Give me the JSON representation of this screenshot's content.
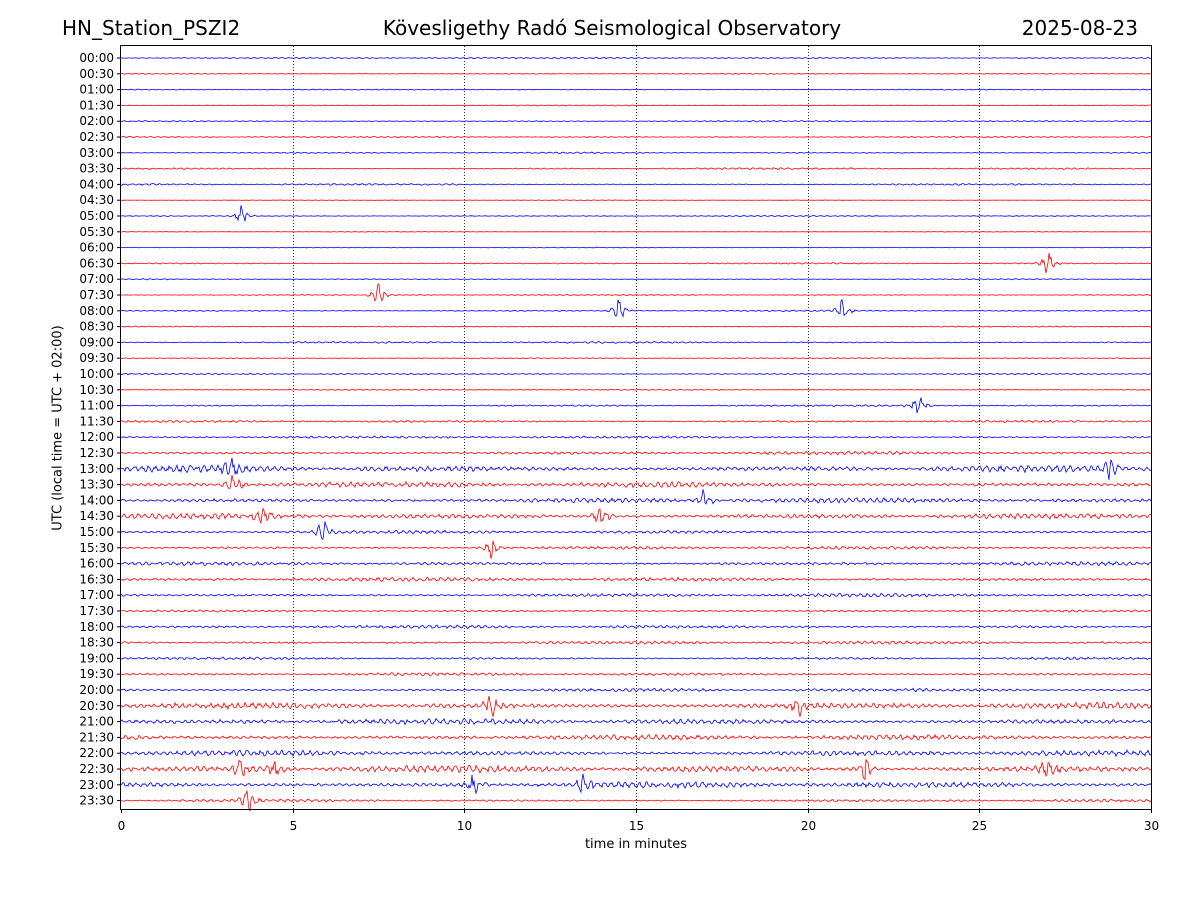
{
  "chart_data": {
    "type": "line",
    "title_left": "HN_Station_PSZI2",
    "title": "Kövesligethy Radó Seismological Observatory",
    "title_right": "2025-08-23",
    "xlabel": "time in minutes",
    "ylabel": "UTC (local time = UTC + 02:00)",
    "xlim": [
      0,
      30
    ],
    "xticks": [
      0,
      5,
      10,
      15,
      20,
      25,
      30
    ],
    "grid": "vertical dotted at x ticks",
    "colors": [
      "#0000ff",
      "#ff0000"
    ],
    "rows": [
      {
        "label": "00:00",
        "amp": 0.2
      },
      {
        "label": "00:30",
        "amp": 0.15
      },
      {
        "label": "01:00",
        "amp": 0.15
      },
      {
        "label": "01:30",
        "amp": 0.15
      },
      {
        "label": "02:00",
        "amp": 0.2
      },
      {
        "label": "02:30",
        "amp": 0.2
      },
      {
        "label": "03:00",
        "amp": 0.2
      },
      {
        "label": "03:30",
        "amp": 0.25
      },
      {
        "label": "04:00",
        "amp": 0.25
      },
      {
        "label": "04:30",
        "amp": 0.1
      },
      {
        "label": "05:00",
        "amp": 0.15
      },
      {
        "label": "05:30",
        "amp": 0.1
      },
      {
        "label": "06:00",
        "amp": 0.1
      },
      {
        "label": "06:30",
        "amp": 0.2
      },
      {
        "label": "07:00",
        "amp": 0.15
      },
      {
        "label": "07:30",
        "amp": 0.15
      },
      {
        "label": "08:00",
        "amp": 0.2
      },
      {
        "label": "08:30",
        "amp": 0.15
      },
      {
        "label": "09:00",
        "amp": 0.25
      },
      {
        "label": "09:30",
        "amp": 0.15
      },
      {
        "label": "10:00",
        "amp": 0.2
      },
      {
        "label": "10:30",
        "amp": 0.15
      },
      {
        "label": "11:00",
        "amp": 0.25
      },
      {
        "label": "11:30",
        "amp": 0.3
      },
      {
        "label": "12:00",
        "amp": 0.35
      },
      {
        "label": "12:30",
        "amp": 0.45
      },
      {
        "label": "13:00",
        "amp": 0.9
      },
      {
        "label": "13:30",
        "amp": 0.8
      },
      {
        "label": "14:00",
        "amp": 0.7
      },
      {
        "label": "14:30",
        "amp": 0.75
      },
      {
        "label": "15:00",
        "amp": 0.45
      },
      {
        "label": "15:30",
        "amp": 0.45
      },
      {
        "label": "16:00",
        "amp": 0.5
      },
      {
        "label": "16:30",
        "amp": 0.55
      },
      {
        "label": "17:00",
        "amp": 0.5
      },
      {
        "label": "17:30",
        "amp": 0.3
      },
      {
        "label": "18:00",
        "amp": 0.45
      },
      {
        "label": "18:30",
        "amp": 0.45
      },
      {
        "label": "19:00",
        "amp": 0.35
      },
      {
        "label": "19:30",
        "amp": 0.4
      },
      {
        "label": "20:00",
        "amp": 0.45
      },
      {
        "label": "20:30",
        "amp": 0.9
      },
      {
        "label": "21:00",
        "amp": 0.8
      },
      {
        "label": "21:30",
        "amp": 0.75
      },
      {
        "label": "22:00",
        "amp": 0.8
      },
      {
        "label": "22:30",
        "amp": 1.0
      },
      {
        "label": "23:00",
        "amp": 0.85
      },
      {
        "label": "23:30",
        "amp": 0.4
      }
    ],
    "bursts": [
      {
        "row": "05:00",
        "x": 3.5
      },
      {
        "row": "06:30",
        "x": 27.0
      },
      {
        "row": "07:30",
        "x": 7.5
      },
      {
        "row": "08:00",
        "x": 14.5
      },
      {
        "row": "08:00",
        "x": 21.0
      },
      {
        "row": "11:00",
        "x": 23.2
      },
      {
        "row": "13:00",
        "x": 3.2
      },
      {
        "row": "13:00",
        "x": 28.8
      },
      {
        "row": "13:30",
        "x": 3.3
      },
      {
        "row": "14:00",
        "x": 17.0
      },
      {
        "row": "14:30",
        "x": 14.0
      },
      {
        "row": "14:30",
        "x": 4.1
      },
      {
        "row": "15:00",
        "x": 5.9
      },
      {
        "row": "15:30",
        "x": 10.8
      },
      {
        "row": "20:30",
        "x": 10.8
      },
      {
        "row": "20:30",
        "x": 19.7
      },
      {
        "row": "22:30",
        "x": 3.5
      },
      {
        "row": "22:30",
        "x": 4.5
      },
      {
        "row": "22:30",
        "x": 21.7
      },
      {
        "row": "22:30",
        "x": 27.0
      },
      {
        "row": "23:00",
        "x": 13.5
      },
      {
        "row": "23:00",
        "x": 10.3
      },
      {
        "row": "23:30",
        "x": 3.7
      }
    ]
  }
}
